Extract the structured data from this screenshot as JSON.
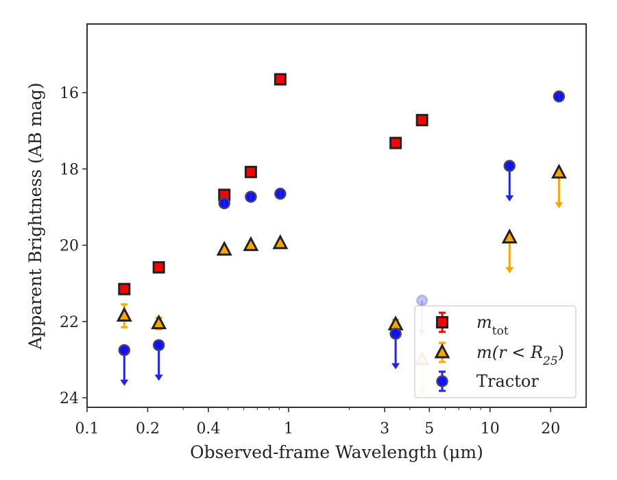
{
  "chart_data": {
    "type": "scatter",
    "title": "",
    "xlabel": "Observed-frame Wavelength (μm)",
    "ylabel": "Apparent Brightness (AB mag)",
    "xscale": "log",
    "xlim": [
      0.1,
      30
    ],
    "ylim": [
      24.25,
      14.2
    ],
    "y_inverted": true,
    "xticks": [
      {
        "value": 0.1,
        "label": "0.1"
      },
      {
        "value": 0.2,
        "label": "0.2"
      },
      {
        "value": 0.4,
        "label": "0.4"
      },
      {
        "value": 1,
        "label": "1"
      },
      {
        "value": 3,
        "label": "3"
      },
      {
        "value": 5,
        "label": "5"
      },
      {
        "value": 10,
        "label": "10"
      },
      {
        "value": 20,
        "label": "20"
      }
    ],
    "yticks": [
      {
        "value": 16,
        "label": "16"
      },
      {
        "value": 18,
        "label": "18"
      },
      {
        "value": 20,
        "label": "20"
      },
      {
        "value": 22,
        "label": "22"
      },
      {
        "value": 24,
        "label": "24"
      }
    ],
    "legend_position": "lower-right",
    "series": [
      {
        "key": "mtot",
        "legend_main": "m",
        "legend_sub": "tot",
        "marker": "square",
        "fill": "#ff0000",
        "errcolor": "#ff0000",
        "points": [
          {
            "x": 0.153,
            "y": 21.15
          },
          {
            "x": 0.227,
            "y": 20.58
          },
          {
            "x": 0.48,
            "y": 18.68
          },
          {
            "x": 0.65,
            "y": 18.08
          },
          {
            "x": 0.91,
            "y": 15.65
          },
          {
            "x": 3.4,
            "y": 17.32
          },
          {
            "x": 4.6,
            "y": 16.72
          },
          {
            "x": 5.6,
            "y": 22.0,
            "alpha": 1.0,
            "err": 0.22,
            "legend_icon": true
          }
        ]
      },
      {
        "key": "mr25",
        "legend_main": "m(r < R",
        "legend_sub": "25",
        "legend_close": ")",
        "marker": "triangle",
        "fill": "#ffa500",
        "errcolor": "#ffa500",
        "points": [
          {
            "x": 0.153,
            "y": 21.85,
            "err": 0.6
          },
          {
            "x": 0.227,
            "y": 22.05,
            "err": 0.3
          },
          {
            "x": 0.48,
            "y": 20.12
          },
          {
            "x": 0.65,
            "y": 20.0
          },
          {
            "x": 0.91,
            "y": 19.95
          },
          {
            "x": 3.4,
            "y": 22.08,
            "err": 0.25
          },
          {
            "x": 4.6,
            "y": 23.0,
            "limit": true,
            "alpha": 0.3
          },
          {
            "x": 12.5,
            "y": 19.8,
            "limit": true
          },
          {
            "x": 22.0,
            "y": 18.1,
            "limit": true
          }
        ]
      },
      {
        "key": "tractor",
        "legend_main": "Tractor",
        "marker": "circle",
        "fill": "#1010ff",
        "errcolor": "#2222ee",
        "points": [
          {
            "x": 0.153,
            "y": 22.75,
            "limit": true
          },
          {
            "x": 0.227,
            "y": 22.62,
            "limit": true
          },
          {
            "x": 0.48,
            "y": 18.9
          },
          {
            "x": 0.65,
            "y": 18.73
          },
          {
            "x": 0.91,
            "y": 18.65
          },
          {
            "x": 3.4,
            "y": 22.32,
            "limit": true
          },
          {
            "x": 4.6,
            "y": 21.45,
            "limit": true,
            "alpha": 0.25
          },
          {
            "x": 12.5,
            "y": 17.92,
            "limit": true
          },
          {
            "x": 22.0,
            "y": 16.1
          }
        ]
      }
    ]
  }
}
